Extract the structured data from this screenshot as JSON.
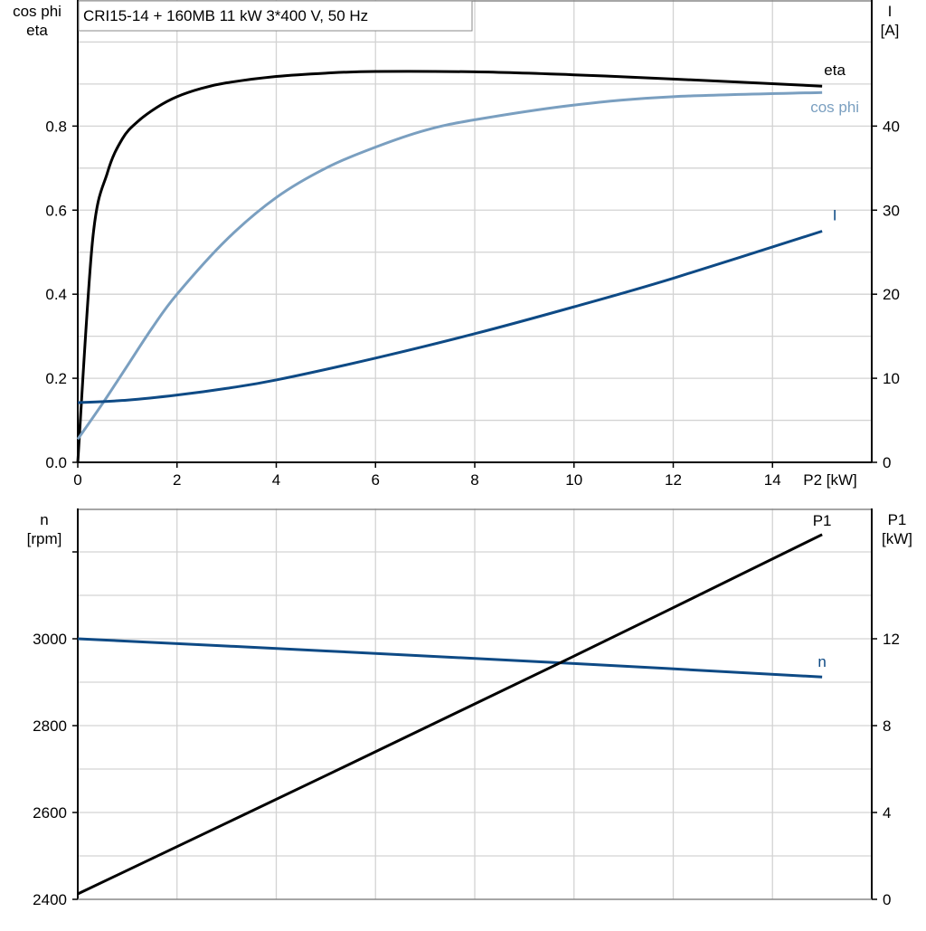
{
  "chart_data": [
    {
      "type": "line",
      "title": "CRI15-14 + 160MB   11 kW   3*400 V, 50 Hz",
      "xlabel": "P2 [kW]",
      "ylabel_left": [
        "cos phi",
        "eta"
      ],
      "ylabel_right": [
        "I",
        "[A]"
      ],
      "xlim": [
        0,
        16
      ],
      "ylim_left": [
        0,
        1.1
      ],
      "ylim_right": [
        0,
        55
      ],
      "x_ticks": [
        0,
        2,
        4,
        6,
        8,
        10,
        12,
        14
      ],
      "y_ticks_left": [
        "0.0",
        "0.2",
        "0.4",
        "0.6",
        "0.8"
      ],
      "y_ticks_right": [
        "0",
        "10",
        "20",
        "30",
        "40"
      ],
      "grid": true,
      "series": [
        {
          "name": "eta",
          "axis": "left",
          "color": "#000000",
          "x": [
            0,
            0.3,
            0.6,
            0.9,
            1.2,
            1.6,
            2,
            2.5,
            3,
            4,
            5,
            6,
            8,
            10,
            12,
            15
          ],
          "y": [
            0,
            0.53,
            0.69,
            0.77,
            0.81,
            0.845,
            0.87,
            0.89,
            0.903,
            0.918,
            0.926,
            0.93,
            0.929,
            0.922,
            0.912,
            0.895
          ]
        },
        {
          "name": "cos phi",
          "axis": "left",
          "color": "#7a9fc0",
          "x": [
            0,
            0.5,
            1,
            1.5,
            2,
            3,
            4,
            5,
            6,
            7,
            8,
            10,
            12,
            15
          ],
          "y": [
            0.055,
            0.14,
            0.23,
            0.32,
            0.4,
            0.53,
            0.63,
            0.7,
            0.75,
            0.79,
            0.815,
            0.85,
            0.87,
            0.88
          ]
        },
        {
          "name": "I",
          "axis": "right",
          "color": "#0e4a85",
          "x": [
            0,
            1,
            2,
            3,
            4,
            6,
            8,
            10,
            12,
            15
          ],
          "y": [
            7.1,
            7.4,
            8.0,
            8.8,
            9.8,
            12.4,
            15.3,
            18.5,
            21.9,
            27.5
          ]
        }
      ]
    },
    {
      "type": "line",
      "xlabel": "",
      "ylabel_left": [
        "n",
        "[rpm]"
      ],
      "ylabel_right": [
        "P1",
        "[kW]"
      ],
      "xlim": [
        0,
        16
      ],
      "ylim_left": [
        2400,
        3300
      ],
      "ylim_right": [
        0,
        18
      ],
      "x_ticks": [
        0,
        2,
        4,
        6,
        8,
        10,
        12,
        14
      ],
      "y_ticks_left": [
        "2400",
        "2600",
        "2800",
        "3000"
      ],
      "y_ticks_right": [
        "0",
        "4",
        "8",
        "12"
      ],
      "grid": true,
      "series": [
        {
          "name": "n",
          "axis": "left",
          "color": "#0e4a85",
          "x": [
            0,
            5,
            10,
            15
          ],
          "y": [
            3000,
            2972,
            2943,
            2912
          ]
        },
        {
          "name": "P1",
          "axis": "right",
          "color": "#000000",
          "x": [
            0,
            5,
            10,
            15
          ],
          "y": [
            0.25,
            5.7,
            11.2,
            16.8
          ]
        }
      ]
    }
  ]
}
